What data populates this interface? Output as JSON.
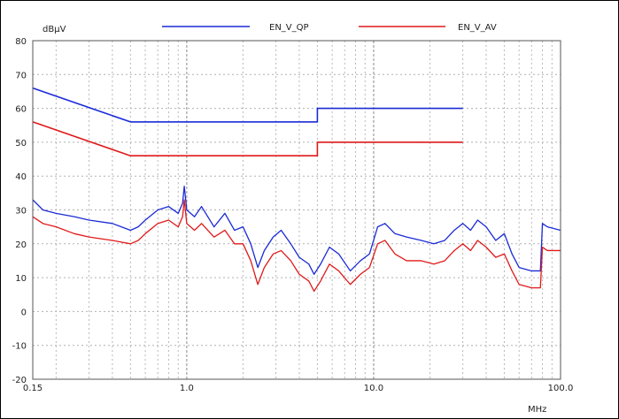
{
  "chart_data": {
    "type": "line",
    "title": "",
    "xlabel": "MHz",
    "ylabel": "dBµV",
    "x_scale": "log",
    "xlim": [
      0.15,
      100.0
    ],
    "ylim": [
      -20,
      80
    ],
    "x_ticks": [
      0.15,
      1.0,
      10.0,
      100.0
    ],
    "x_tick_labels": [
      "0.15",
      "1.0",
      "10.0",
      "100.0"
    ],
    "y_ticks": [
      80,
      70,
      60,
      50,
      40,
      30,
      20,
      10,
      0,
      -10,
      -20
    ],
    "y_tick_labels": [
      "80",
      "70",
      "60",
      "50",
      "40",
      "30",
      "20",
      "10",
      "0",
      "-10",
      "-20"
    ],
    "grid": true,
    "legend_position": "top",
    "series": [
      {
        "name": "EN_V_QP",
        "color": "#1a2bd6",
        "points": [
          [
            0.15,
            66
          ],
          [
            0.5,
            56
          ],
          [
            5.0,
            56
          ],
          [
            5.0,
            60
          ],
          [
            30.0,
            60
          ]
        ]
      },
      {
        "name": "EN_V_AV",
        "color": "#e01a1a",
        "points": [
          [
            0.15,
            56
          ],
          [
            0.5,
            46
          ],
          [
            5.0,
            46
          ],
          [
            5.0,
            50
          ],
          [
            30.0,
            50
          ]
        ]
      },
      {
        "name": "",
        "color": "#1a2bd6",
        "points": [
          [
            0.15,
            33
          ],
          [
            0.17,
            30
          ],
          [
            0.2,
            29
          ],
          [
            0.25,
            28
          ],
          [
            0.3,
            27
          ],
          [
            0.4,
            26
          ],
          [
            0.5,
            24
          ],
          [
            0.55,
            25
          ],
          [
            0.6,
            27
          ],
          [
            0.7,
            30
          ],
          [
            0.8,
            31
          ],
          [
            0.9,
            29
          ],
          [
            0.95,
            32
          ],
          [
            0.97,
            37
          ],
          [
            1.0,
            30
          ],
          [
            1.1,
            28
          ],
          [
            1.2,
            31
          ],
          [
            1.4,
            25
          ],
          [
            1.6,
            29
          ],
          [
            1.8,
            24
          ],
          [
            2.0,
            25
          ],
          [
            2.2,
            20
          ],
          [
            2.4,
            13
          ],
          [
            2.6,
            18
          ],
          [
            2.9,
            22
          ],
          [
            3.2,
            24
          ],
          [
            3.6,
            20
          ],
          [
            4.0,
            16
          ],
          [
            4.5,
            14
          ],
          [
            4.8,
            11
          ],
          [
            5.2,
            14
          ],
          [
            5.8,
            19
          ],
          [
            6.5,
            17
          ],
          [
            7.5,
            12
          ],
          [
            8.5,
            15
          ],
          [
            9.5,
            17
          ],
          [
            10.5,
            25
          ],
          [
            11.5,
            26
          ],
          [
            13.0,
            23
          ],
          [
            15.0,
            22
          ],
          [
            18.0,
            21
          ],
          [
            21.0,
            20
          ],
          [
            24.0,
            21
          ],
          [
            27.0,
            24
          ],
          [
            30.0,
            26
          ],
          [
            33.0,
            24
          ],
          [
            36.0,
            27
          ],
          [
            40.0,
            25
          ],
          [
            45.0,
            21
          ],
          [
            50.0,
            23
          ],
          [
            55.0,
            17
          ],
          [
            60.0,
            13
          ],
          [
            70.0,
            12
          ],
          [
            78.0,
            12
          ],
          [
            80.0,
            26
          ],
          [
            85.0,
            25
          ],
          [
            100.0,
            24
          ]
        ]
      },
      {
        "name": "",
        "color": "#e01a1a",
        "points": [
          [
            0.15,
            28
          ],
          [
            0.17,
            26
          ],
          [
            0.2,
            25
          ],
          [
            0.25,
            23
          ],
          [
            0.3,
            22
          ],
          [
            0.4,
            21
          ],
          [
            0.5,
            20
          ],
          [
            0.55,
            21
          ],
          [
            0.6,
            23
          ],
          [
            0.7,
            26
          ],
          [
            0.8,
            27
          ],
          [
            0.9,
            25
          ],
          [
            0.95,
            28
          ],
          [
            0.97,
            33
          ],
          [
            1.0,
            26
          ],
          [
            1.1,
            24
          ],
          [
            1.2,
            26
          ],
          [
            1.4,
            22
          ],
          [
            1.6,
            24
          ],
          [
            1.8,
            20
          ],
          [
            2.0,
            20
          ],
          [
            2.2,
            15
          ],
          [
            2.4,
            8
          ],
          [
            2.6,
            13
          ],
          [
            2.9,
            17
          ],
          [
            3.2,
            18
          ],
          [
            3.6,
            15
          ],
          [
            4.0,
            11
          ],
          [
            4.5,
            9
          ],
          [
            4.8,
            6
          ],
          [
            5.2,
            9
          ],
          [
            5.8,
            14
          ],
          [
            6.5,
            12
          ],
          [
            7.5,
            8
          ],
          [
            8.5,
            11
          ],
          [
            9.5,
            13
          ],
          [
            10.5,
            20
          ],
          [
            11.5,
            21
          ],
          [
            13.0,
            17
          ],
          [
            15.0,
            15
          ],
          [
            18.0,
            15
          ],
          [
            21.0,
            14
          ],
          [
            24.0,
            15
          ],
          [
            27.0,
            18
          ],
          [
            30.0,
            20
          ],
          [
            33.0,
            18
          ],
          [
            36.0,
            21
          ],
          [
            40.0,
            19
          ],
          [
            45.0,
            16
          ],
          [
            50.0,
            17
          ],
          [
            55.0,
            12
          ],
          [
            60.0,
            8
          ],
          [
            70.0,
            7
          ],
          [
            78.0,
            7
          ],
          [
            80.0,
            19
          ],
          [
            85.0,
            18
          ],
          [
            100.0,
            18
          ]
        ]
      }
    ]
  }
}
